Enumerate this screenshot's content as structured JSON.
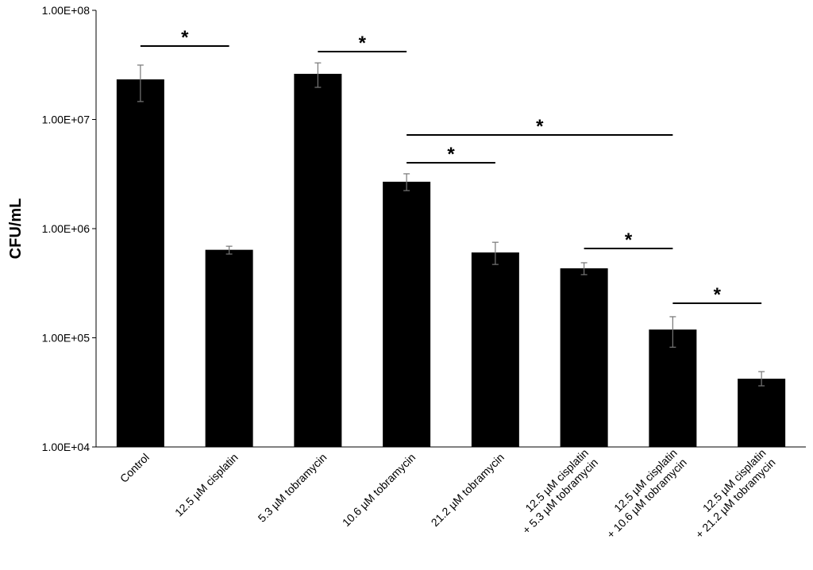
{
  "chart_data": {
    "type": "bar",
    "title": "",
    "xlabel": "",
    "ylabel": "CFU/mL",
    "yscale": "log",
    "ylim": [
      10000,
      100000000
    ],
    "yticks": [
      10000,
      100000,
      1000000,
      10000000,
      100000000
    ],
    "ytick_labels": [
      "1.00E+04",
      "1.00E+05",
      "1.00E+06",
      "1.00E+07",
      "1.00E+08"
    ],
    "grid": false,
    "bar_color": "#000000",
    "categories": [
      [
        "Control"
      ],
      [
        "12.5 µM cisplatin"
      ],
      [
        "5.3 µM tobramycin"
      ],
      [
        "10.6 µM tobramycin"
      ],
      [
        "21.2 µM tobramycin"
      ],
      [
        "12.5 µM cisplatin",
        "+ 5.3 µM tobramycin"
      ],
      [
        "12.5 µM cisplatin",
        "+ 10.6 µM tobramycin"
      ],
      [
        "12.5 µM cisplatin",
        "+ 21.2 µM tobramycin"
      ]
    ],
    "values": [
      23300000,
      640000,
      26200000,
      2690000,
      605000,
      433000,
      119000,
      42200
    ],
    "error_high": [
      31500000,
      690000,
      33000000,
      3180000,
      750000,
      487000,
      156000,
      49000
    ],
    "error_low": [
      14600000,
      585000,
      19700000,
      2230000,
      470000,
      379000,
      82000,
      36300
    ],
    "significance": [
      {
        "from": 0,
        "to": 1,
        "label": "*"
      },
      {
        "from": 2,
        "to": 3,
        "label": "*"
      },
      {
        "from": 3,
        "to": 6,
        "label": "*"
      },
      {
        "from": 3,
        "to": 4,
        "label": "*"
      },
      {
        "from": 5,
        "to": 6,
        "label": "*"
      },
      {
        "from": 6,
        "to": 7,
        "label": "*"
      }
    ]
  }
}
